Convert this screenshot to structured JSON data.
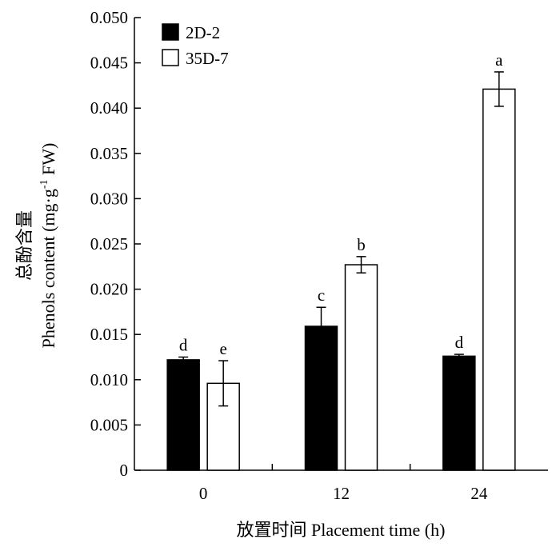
{
  "chart_data": {
    "type": "bar",
    "categories": [
      "0",
      "12",
      "24"
    ],
    "series": [
      {
        "name": "2D-2",
        "values": [
          0.0122,
          0.0159,
          0.0126
        ],
        "errors": [
          0.0003,
          0.0021,
          0.0002
        ],
        "labels": [
          "d",
          "c",
          "d"
        ],
        "color": "#000000"
      },
      {
        "name": "35D-7",
        "values": [
          0.0096,
          0.0227,
          0.0421
        ],
        "errors": [
          0.0025,
          0.0009,
          0.0019
        ],
        "labels": [
          "e",
          "b",
          "a"
        ],
        "color": "#ffffff"
      }
    ],
    "xlabel": "放置时间 Placement time (h)",
    "ylabel_cn": "总酚含量",
    "ylabel_en_prefix": "Phenols content (mg·g",
    "ylabel_sup": "-1",
    "ylabel_en_suffix": " FW)",
    "ylim": [
      0,
      0.05
    ],
    "yticks": [
      "0",
      "0.005",
      "0.010",
      "0.015",
      "0.020",
      "0.025",
      "0.030",
      "0.035",
      "0.040",
      "0.045",
      "0.050"
    ],
    "grid": false,
    "legend_position": "top-left"
  }
}
